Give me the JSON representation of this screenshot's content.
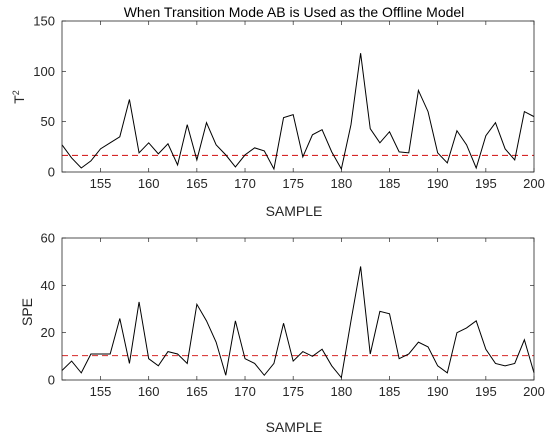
{
  "chart_data": [
    {
      "type": "line",
      "title": "When Transition Mode AB is Used as the Offline Model",
      "xlabel": "SAMPLE",
      "ylabel": "T",
      "ylabel_superscript": "2",
      "xlim": [
        151,
        200
      ],
      "ylim": [
        0,
        150
      ],
      "xticks": [
        155,
        160,
        165,
        170,
        175,
        180,
        185,
        190,
        195,
        200
      ],
      "yticks": [
        0,
        50,
        100,
        150
      ],
      "grid": false,
      "series": [
        {
          "color": "#000000",
          "x": [
            151,
            152,
            153,
            154,
            155,
            156,
            157,
            158,
            159,
            160,
            161,
            162,
            163,
            164,
            165,
            166,
            167,
            168,
            169,
            170,
            171,
            172,
            173,
            174,
            175,
            176,
            177,
            178,
            179,
            180,
            181,
            182,
            183,
            184,
            185,
            186,
            187,
            188,
            189,
            190,
            191,
            192,
            193,
            194,
            195,
            196,
            197,
            198,
            199,
            200
          ],
          "y": [
            27,
            14,
            4,
            11,
            23,
            29,
            35,
            72,
            19,
            29,
            18,
            28,
            7,
            47,
            12,
            49,
            27,
            17,
            5,
            17,
            24,
            21,
            3,
            54,
            57,
            15,
            37,
            42,
            20,
            3,
            47,
            118,
            43,
            29,
            40,
            20,
            19,
            81,
            60,
            19,
            9,
            41,
            27,
            4,
            36,
            49,
            23,
            12,
            60,
            55
          ]
        }
      ],
      "control_limit": {
        "y": 16.5,
        "color": "#d62728",
        "style": "dashed"
      }
    },
    {
      "type": "line",
      "title": "",
      "xlabel": "SAMPLE",
      "ylabel": "SPE",
      "xlim": [
        151,
        200
      ],
      "ylim": [
        0,
        60
      ],
      "xticks": [
        155,
        160,
        165,
        170,
        175,
        180,
        185,
        190,
        195,
        200
      ],
      "yticks": [
        0,
        20,
        40,
        60
      ],
      "grid": false,
      "series": [
        {
          "color": "#000000",
          "x": [
            151,
            152,
            153,
            154,
            155,
            156,
            157,
            158,
            159,
            160,
            161,
            162,
            163,
            164,
            165,
            166,
            167,
            168,
            169,
            170,
            171,
            172,
            173,
            174,
            175,
            176,
            177,
            178,
            179,
            180,
            181,
            182,
            183,
            184,
            185,
            186,
            187,
            188,
            189,
            190,
            191,
            192,
            193,
            194,
            195,
            196,
            197,
            198,
            199,
            200
          ],
          "y": [
            4,
            8,
            3,
            11,
            11,
            11,
            26,
            7,
            33,
            9,
            6,
            12,
            11,
            7,
            32,
            25,
            16,
            2,
            25,
            9,
            7,
            2,
            7,
            24,
            8,
            12,
            10,
            13,
            6,
            1,
            25,
            48,
            11,
            29,
            28,
            9,
            11,
            16,
            14,
            6,
            3,
            20,
            22,
            25,
            13,
            7,
            6,
            7,
            17,
            3
          ]
        }
      ],
      "control_limit": {
        "y": 10.3,
        "color": "#d62728",
        "style": "dashed"
      }
    }
  ]
}
